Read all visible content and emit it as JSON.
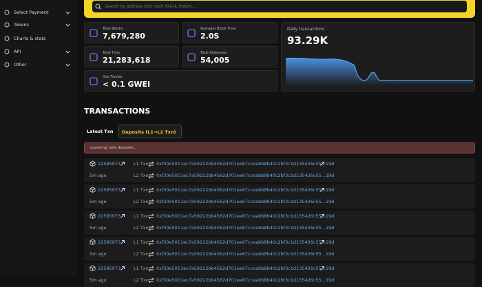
{
  "sidebar": {
    "items": [
      "Select Payment",
      "Tokens",
      "Charts & stats",
      "API",
      "Other"
    ]
  },
  "search": {
    "placeholder": "Search by address /txn hash /block /token..."
  },
  "stats": [
    {
      "label": "Total Blocks",
      "value": "7,679,280"
    },
    {
      "label": "Averager Block Time",
      "value": "2.0S"
    },
    {
      "label": "Total Txns",
      "value": "21,283,618"
    },
    {
      "label": "Total Addresses",
      "value": "54,005"
    },
    {
      "label": "Gas Tracker",
      "value": "< 0.1 GWEI"
    }
  ],
  "daily": {
    "label": "Daily transactions",
    "value": "93.29K"
  },
  "transactions": {
    "title": "TRANSACTIONS",
    "tabs": [
      "Latest Txn",
      "Deposits (L1→L2 Txn)"
    ],
    "banner": "scanning new deposits...",
    "rows": [
      {
        "block": "22585973",
        "age": "5m ago",
        "l1_label": "L1 Txn",
        "l1_hash": "0xf30e5011ec7a59222bb4562d701ee67cceabb8b40c2bf3c1d135426c55...19d",
        "l2_label": "L2 Txn",
        "l2_hash": "0xf30e5011ec7a59222bb4562d701ee67cceabb8b40c2bf3c1d135426c55...19d"
      },
      {
        "block": "22585973",
        "age": "5m ago",
        "l1_label": "L1 Txn",
        "l1_hash": "0xf30e5011ec7a59222bb4562d701ee67cceabb8b40c2bf3c1d135426c55...19d",
        "l2_label": "L2 Txn",
        "l2_hash": "0xf30e5011ec7a59222bb4562d701ee67cceabb8b40c2bf3c1d135426c55...19d"
      },
      {
        "block": "22585973",
        "age": "5m ago",
        "l1_label": "L1 Txn",
        "l1_hash": "0xf30e5011ec7a59222bb4562d701ee67cceabb8b40c2bf3c1d135426c55...19d",
        "l2_label": "L2 Txn",
        "l2_hash": "0xf30e5011ec7a59222bb4562d701ee67cceabb8b40c2bf3c1d135426c55...19d"
      },
      {
        "block": "22585973",
        "age": "5m ago",
        "l1_label": "L1 Txn",
        "l1_hash": "0xf30e5011ec7a59222bb4562d701ee67cceabb8b40c2bf3c1d135426c55...19d",
        "l2_label": "L2 Txn",
        "l2_hash": "0xf30e5011ec7a59222bb4562d701ee67cceabb8b40c2bf3c1d135426c55...19d"
      },
      {
        "block": "22585973",
        "age": "5m ago",
        "l1_label": "L1 Txn",
        "l1_hash": "0xf30e5011ec7a59222bb4562d701ee67cceabb8b40c2bf3c1d135426c55...19d",
        "l2_label": "L2 Txn",
        "l2_hash": "0xf30e5011ec7a59222bb4562d701ee67cceabb8b40c2bf3c1d135426c55...19d"
      }
    ]
  }
}
